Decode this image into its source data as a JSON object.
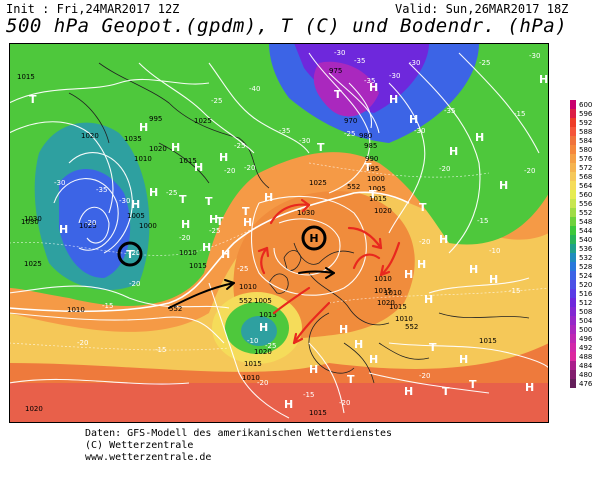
{
  "header": {
    "init": "Init : Fri,24MAR2017 12Z",
    "valid": "Valid: Sun,26MAR2017 18Z",
    "title": "500 hPa Geopot.(gpdm), T (C) und Bodendr. (hPa)"
  },
  "footer": {
    "line1": "Daten: GFS-Modell des amerikanischen Wetterdienstes",
    "line2": "(C) Wetterzentrale",
    "line3": "www.wetterzentrale.de"
  },
  "scale": {
    "labels": [
      "600",
      "596",
      "592",
      "588",
      "584",
      "580",
      "576",
      "572",
      "568",
      "564",
      "560",
      "556",
      "552",
      "548",
      "544",
      "540",
      "536",
      "532",
      "528",
      "524",
      "520",
      "516",
      "512",
      "508",
      "504",
      "500",
      "496",
      "492",
      "488",
      "484",
      "480",
      "476"
    ],
    "colors": [
      "#c8006e",
      "#dc1e46",
      "#ee3c28",
      "#f5553a",
      "#f0733c",
      "#f5873c",
      "#f5a046",
      "#f5b450",
      "#f5c85a",
      "#f5dc5a",
      "#e6ec50",
      "#c8e650",
      "#a0dc46",
      "#6ed23c",
      "#3cc83c",
      "#28b45a",
      "#1ea08c",
      "#1e8cbe",
      "#2878dc",
      "#3c64e6",
      "#4b50e6",
      "#5a3ce6",
      "#6e28dc",
      "#8228d2",
      "#9628c8",
      "#aa28be",
      "#be28b4",
      "#d228aa",
      "#dc28a0",
      "#aa1e8c",
      "#821e6e",
      "#641e5a"
    ]
  },
  "pressure_labels": [
    {
      "t": "1015"
    },
    {
      "t": "1030"
    },
    {
      "t": "1020"
    },
    {
      "t": "1025"
    },
    {
      "t": "1035"
    },
    {
      "t": "1010"
    },
    {
      "t": "995"
    },
    {
      "t": "1000"
    },
    {
      "t": "1005"
    },
    {
      "t": "1020"
    },
    {
      "t": "1015"
    },
    {
      "t": "1025"
    },
    {
      "t": "975"
    },
    {
      "t": "970"
    },
    {
      "t": "980"
    },
    {
      "t": "985"
    },
    {
      "t": "990"
    },
    {
      "t": "995"
    },
    {
      "t": "1000"
    },
    {
      "t": "1005"
    },
    {
      "t": "1015"
    },
    {
      "t": "1020"
    },
    {
      "t": "1025"
    },
    {
      "t": "1030"
    },
    {
      "t": "1025"
    },
    {
      "t": "1030"
    },
    {
      "t": "1010"
    },
    {
      "t": "1015"
    },
    {
      "t": "1010"
    },
    {
      "t": "1005"
    },
    {
      "t": "1015"
    },
    {
      "t": "1020"
    },
    {
      "t": "1015"
    },
    {
      "t": "1010"
    },
    {
      "t": "1010"
    },
    {
      "t": "1015"
    },
    {
      "t": "1020"
    },
    {
      "t": "1015"
    },
    {
      "t": "1010"
    },
    {
      "t": "1020"
    },
    {
      "t": "1015"
    },
    {
      "t": "1015"
    },
    {
      "t": "552"
    },
    {
      "t": "552"
    },
    {
      "t": "1010"
    },
    {
      "t": "552"
    },
    {
      "t": "1010"
    },
    {
      "t": "552"
    }
  ],
  "temp_labels": [
    {
      "t": "-30"
    },
    {
      "t": "-35"
    },
    {
      "t": "-30"
    },
    {
      "t": "-25"
    },
    {
      "t": "-30"
    },
    {
      "t": "-35"
    },
    {
      "t": "-30"
    },
    {
      "t": "-40"
    },
    {
      "t": "-35"
    },
    {
      "t": "-30"
    },
    {
      "t": "-25"
    },
    {
      "t": "-25"
    },
    {
      "t": "-30"
    },
    {
      "t": "-35"
    },
    {
      "t": "-30"
    },
    {
      "t": "-25"
    },
    {
      "t": "-20"
    },
    {
      "t": "-25"
    },
    {
      "t": "-20"
    },
    {
      "t": "-15"
    },
    {
      "t": "-20"
    },
    {
      "t": "-15"
    },
    {
      "t": "-10"
    },
    {
      "t": "-20"
    },
    {
      "t": "-15"
    },
    {
      "t": "-20"
    },
    {
      "t": "-20"
    },
    {
      "t": "-15"
    },
    {
      "t": "-20"
    },
    {
      "t": "-15"
    },
    {
      "t": "-10"
    },
    {
      "t": "-20"
    },
    {
      "t": "-15"
    },
    {
      "t": "-20"
    },
    {
      "t": "-25"
    },
    {
      "t": "-20"
    },
    {
      "t": "-25"
    },
    {
      "t": "-20"
    },
    {
      "t": "-25"
    },
    {
      "t": "-20"
    },
    {
      "t": "-35"
    },
    {
      "t": "-30"
    },
    {
      "t": "-20"
    }
  ],
  "systems": [
    {
      "t": "T"
    },
    {
      "t": "H"
    },
    {
      "t": "H"
    },
    {
      "t": "H"
    },
    {
      "t": "H"
    },
    {
      "t": "H"
    },
    {
      "t": "H"
    },
    {
      "t": "T"
    },
    {
      "t": "T"
    },
    {
      "t": "H"
    },
    {
      "t": "H"
    },
    {
      "t": "H"
    },
    {
      "t": "T"
    },
    {
      "t": "T"
    },
    {
      "t": "H"
    },
    {
      "t": "H"
    },
    {
      "t": "H"
    },
    {
      "t": "H"
    },
    {
      "t": "T"
    },
    {
      "t": "T"
    },
    {
      "t": "H"
    },
    {
      "t": "H"
    },
    {
      "t": "H"
    },
    {
      "t": "T"
    },
    {
      "t": "H"
    },
    {
      "t": "H"
    },
    {
      "t": "H"
    },
    {
      "t": "H"
    },
    {
      "t": "T"
    },
    {
      "t": "T"
    },
    {
      "t": "H"
    },
    {
      "t": "H"
    },
    {
      "t": "H"
    },
    {
      "t": "H"
    },
    {
      "t": "H"
    },
    {
      "t": "H"
    },
    {
      "t": "T"
    },
    {
      "t": "H"
    },
    {
      "t": "T"
    },
    {
      "t": "H"
    },
    {
      "t": "H"
    },
    {
      "t": "T"
    },
    {
      "t": "H"
    },
    {
      "t": "H"
    },
    {
      "t": "H"
    },
    {
      "t": "H"
    },
    {
      "t": "H"
    },
    {
      "t": "T"
    },
    {
      "t": "H"
    },
    {
      "t": "H"
    }
  ],
  "annotations": {
    "circled_low": "T",
    "circled_high": "H",
    "arrow_color": "#e8281e",
    "flow_arrow_color": "#000000"
  }
}
